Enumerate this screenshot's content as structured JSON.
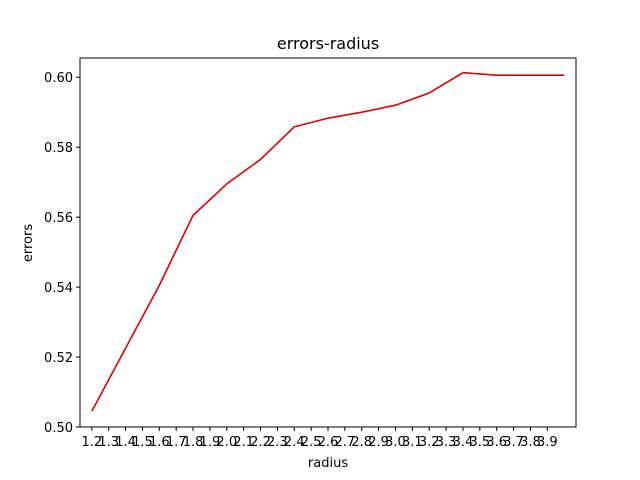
{
  "chart_data": {
    "type": "line",
    "title": "errors-radius",
    "xlabel": "radius",
    "ylabel": "errors",
    "x_ticks": [
      "1.2",
      "1.3",
      "1.4",
      "1.5",
      "1.6",
      "1.7",
      "1.8",
      "1.9",
      "2.0",
      "2.1",
      "2.2",
      "2.3",
      "2.4",
      "2.5",
      "2.6",
      "2.7",
      "2.8",
      "2.9",
      "3.0",
      "3.1",
      "3.2",
      "3.3",
      "3.4",
      "3.5",
      "3.6",
      "3.7",
      "3.8",
      "3.9"
    ],
    "y_ticks": [
      "0.50",
      "0.52",
      "0.54",
      "0.56",
      "0.58",
      "0.60"
    ],
    "ylim": [
      0.5,
      0.6055
    ],
    "xlim": [
      1.13,
      4.07
    ],
    "grid": false,
    "line_color": "#dd0000",
    "series": [
      {
        "x": [
          1.2,
          1.4,
          1.6,
          1.8,
          2.0,
          2.2,
          2.4,
          2.6,
          2.8,
          3.0,
          3.2,
          3.4,
          3.6,
          3.8,
          4.0
        ],
        "values": [
          0.5045,
          0.5225,
          0.5405,
          0.5605,
          0.5695,
          0.5765,
          0.5858,
          0.5883,
          0.59,
          0.592,
          0.5955,
          0.6013,
          0.6006,
          0.6006,
          0.6006
        ]
      }
    ]
  }
}
